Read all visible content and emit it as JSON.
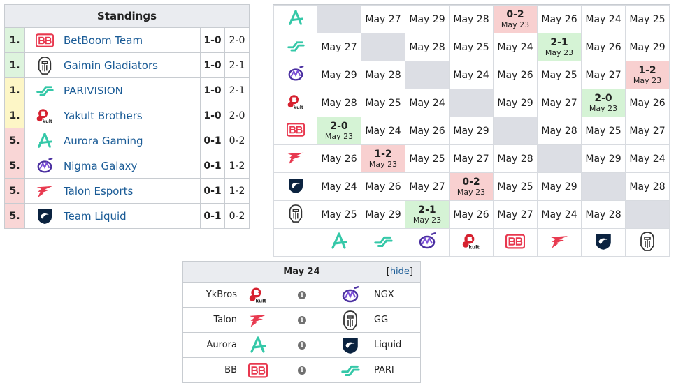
{
  "standings": {
    "title": "Standings",
    "rows": [
      {
        "rank": "1.",
        "team": "BetBoom Team",
        "logo": "betboom-logo",
        "match_record": "1-0",
        "game_record": "2-0",
        "rank_color": "green"
      },
      {
        "rank": "1.",
        "team": "Gaimin Gladiators",
        "logo": "gaimin-logo",
        "match_record": "1-0",
        "game_record": "2-1",
        "rank_color": "green"
      },
      {
        "rank": "1.",
        "team": "PARIVISION",
        "logo": "parivision-logo",
        "match_record": "1-0",
        "game_record": "2-1",
        "rank_color": "yellow"
      },
      {
        "rank": "1.",
        "team": "Yakult Brothers",
        "logo": "yakult-logo",
        "match_record": "1-0",
        "game_record": "2-0",
        "rank_color": "yellow"
      },
      {
        "rank": "5.",
        "team": "Aurora Gaming",
        "logo": "aurora-logo",
        "match_record": "0-1",
        "game_record": "0-2",
        "rank_color": "red"
      },
      {
        "rank": "5.",
        "team": "Nigma Galaxy",
        "logo": "nigma-logo",
        "match_record": "0-1",
        "game_record": "1-2",
        "rank_color": "red"
      },
      {
        "rank": "5.",
        "team": "Talon Esports",
        "logo": "talon-logo",
        "match_record": "0-1",
        "game_record": "1-2",
        "rank_color": "red"
      },
      {
        "rank": "5.",
        "team": "Team Liquid",
        "logo": "liquid-logo",
        "match_record": "0-1",
        "game_record": "0-2",
        "rank_color": "red"
      }
    ]
  },
  "crosstable": {
    "row_logos": [
      "aurora-logo",
      "parivision-logo",
      "nigma-logo",
      "yakult-logo",
      "betboom-logo",
      "talon-logo",
      "liquid-logo",
      "gaimin-logo"
    ],
    "col_logos": [
      "aurora-logo",
      "parivision-logo",
      "nigma-logo",
      "yakult-logo",
      "betboom-logo",
      "talon-logo",
      "liquid-logo",
      "gaimin-logo"
    ],
    "rows": [
      [
        {
          "t": "blank"
        },
        {
          "t": "date",
          "d": "May 27"
        },
        {
          "t": "date",
          "d": "May 29"
        },
        {
          "t": "date",
          "d": "May 28"
        },
        {
          "t": "loss",
          "r": "0-2",
          "d": "May 23"
        },
        {
          "t": "date",
          "d": "May 26"
        },
        {
          "t": "date",
          "d": "May 24"
        },
        {
          "t": "date",
          "d": "May 25"
        }
      ],
      [
        {
          "t": "date",
          "d": "May 27"
        },
        {
          "t": "blank"
        },
        {
          "t": "date",
          "d": "May 28"
        },
        {
          "t": "date",
          "d": "May 25"
        },
        {
          "t": "date",
          "d": "May 24"
        },
        {
          "t": "win",
          "r": "2-1",
          "d": "May 23"
        },
        {
          "t": "date",
          "d": "May 26"
        },
        {
          "t": "date",
          "d": "May 29"
        }
      ],
      [
        {
          "t": "date",
          "d": "May 29"
        },
        {
          "t": "date",
          "d": "May 28"
        },
        {
          "t": "blank"
        },
        {
          "t": "date",
          "d": "May 24"
        },
        {
          "t": "date",
          "d": "May 26"
        },
        {
          "t": "date",
          "d": "May 25"
        },
        {
          "t": "date",
          "d": "May 27"
        },
        {
          "t": "loss",
          "r": "1-2",
          "d": "May 23"
        }
      ],
      [
        {
          "t": "date",
          "d": "May 28"
        },
        {
          "t": "date",
          "d": "May 25"
        },
        {
          "t": "date",
          "d": "May 24"
        },
        {
          "t": "blank"
        },
        {
          "t": "date",
          "d": "May 29"
        },
        {
          "t": "date",
          "d": "May 27"
        },
        {
          "t": "win",
          "r": "2-0",
          "d": "May 23"
        },
        {
          "t": "date",
          "d": "May 26"
        }
      ],
      [
        {
          "t": "win",
          "r": "2-0",
          "d": "May 23"
        },
        {
          "t": "date",
          "d": "May 24"
        },
        {
          "t": "date",
          "d": "May 26"
        },
        {
          "t": "date",
          "d": "May 29"
        },
        {
          "t": "blank"
        },
        {
          "t": "date",
          "d": "May 28"
        },
        {
          "t": "date",
          "d": "May 25"
        },
        {
          "t": "date",
          "d": "May 27"
        }
      ],
      [
        {
          "t": "date",
          "d": "May 26"
        },
        {
          "t": "loss",
          "r": "1-2",
          "d": "May 23"
        },
        {
          "t": "date",
          "d": "May 25"
        },
        {
          "t": "date",
          "d": "May 27"
        },
        {
          "t": "date",
          "d": "May 28"
        },
        {
          "t": "blank"
        },
        {
          "t": "date",
          "d": "May 29"
        },
        {
          "t": "date",
          "d": "May 24"
        }
      ],
      [
        {
          "t": "date",
          "d": "May 24"
        },
        {
          "t": "date",
          "d": "May 26"
        },
        {
          "t": "date",
          "d": "May 27"
        },
        {
          "t": "loss",
          "r": "0-2",
          "d": "May 23"
        },
        {
          "t": "date",
          "d": "May 25"
        },
        {
          "t": "date",
          "d": "May 29"
        },
        {
          "t": "blank"
        },
        {
          "t": "date",
          "d": "May 28"
        }
      ],
      [
        {
          "t": "date",
          "d": "May 25"
        },
        {
          "t": "date",
          "d": "May 29"
        },
        {
          "t": "win",
          "r": "2-1",
          "d": "May 23"
        },
        {
          "t": "date",
          "d": "May 26"
        },
        {
          "t": "date",
          "d": "May 27"
        },
        {
          "t": "date",
          "d": "May 24"
        },
        {
          "t": "date",
          "d": "May 28"
        },
        {
          "t": "blank"
        }
      ]
    ]
  },
  "matches": {
    "date": "May 24",
    "hide_label": "hide",
    "rows": [
      {
        "team1": "YkBros",
        "logo1": "yakult-logo",
        "team2": "NGX",
        "logo2": "nigma-logo"
      },
      {
        "team1": "Talon",
        "logo1": "talon-logo",
        "team2": "GG",
        "logo2": "gaimin-logo"
      },
      {
        "team1": "Aurora",
        "logo1": "aurora-logo",
        "team2": "Liquid",
        "logo2": "liquid-logo"
      },
      {
        "team1": "BB",
        "logo1": "betboom-logo",
        "team2": "PARI",
        "logo2": "parivision-logo"
      }
    ]
  },
  "colors": {
    "link": "#1a5b96",
    "win_bg": "#d5f3d5",
    "loss_bg": "#f8d0d0",
    "blank_bg": "#dcdee4",
    "header_bg": "#eaecf0",
    "rank_green": "#ddf4dd",
    "rank_yellow": "#fdf6c6",
    "rank_red": "#f9d6d6"
  }
}
